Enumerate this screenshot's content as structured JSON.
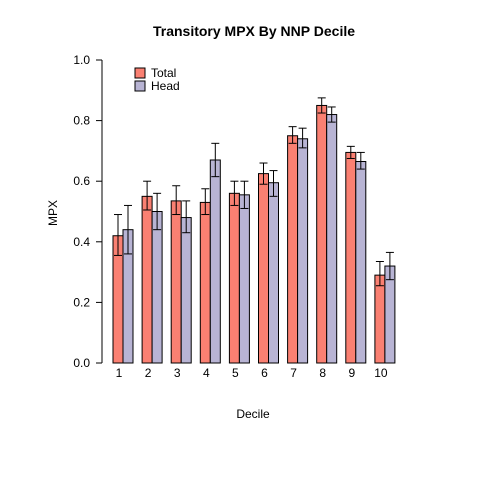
{
  "chart_data": {
    "type": "bar",
    "title": "Transitory MPX By NNP Decile",
    "xlabel": "Decile",
    "ylabel": "MPX",
    "ylim": [
      0,
      1
    ],
    "yticks": [
      "0.0",
      "0.2",
      "0.4",
      "0.6",
      "0.8",
      "1.0"
    ],
    "categories": [
      "1",
      "2",
      "3",
      "4",
      "5",
      "6",
      "7",
      "8",
      "9",
      "10"
    ],
    "legend_position": "top-left",
    "grid": false,
    "series": [
      {
        "name": "Total",
        "color": "#FA8072",
        "values": [
          0.42,
          0.55,
          0.535,
          0.53,
          0.56,
          0.625,
          0.75,
          0.85,
          0.695,
          0.29
        ],
        "error_low": [
          0.355,
          0.505,
          0.49,
          0.49,
          0.52,
          0.59,
          0.725,
          0.825,
          0.675,
          0.255
        ],
        "error_high": [
          0.49,
          0.6,
          0.585,
          0.575,
          0.6,
          0.66,
          0.78,
          0.875,
          0.715,
          0.335
        ]
      },
      {
        "name": "Head",
        "color": "#B8B4D4",
        "values": [
          0.44,
          0.5,
          0.48,
          0.67,
          0.555,
          0.595,
          0.74,
          0.82,
          0.665,
          0.32
        ],
        "error_low": [
          0.36,
          0.44,
          0.43,
          0.615,
          0.51,
          0.55,
          0.71,
          0.795,
          0.64,
          0.275
        ],
        "error_high": [
          0.52,
          0.56,
          0.535,
          0.725,
          0.6,
          0.635,
          0.775,
          0.845,
          0.695,
          0.365
        ]
      }
    ]
  }
}
